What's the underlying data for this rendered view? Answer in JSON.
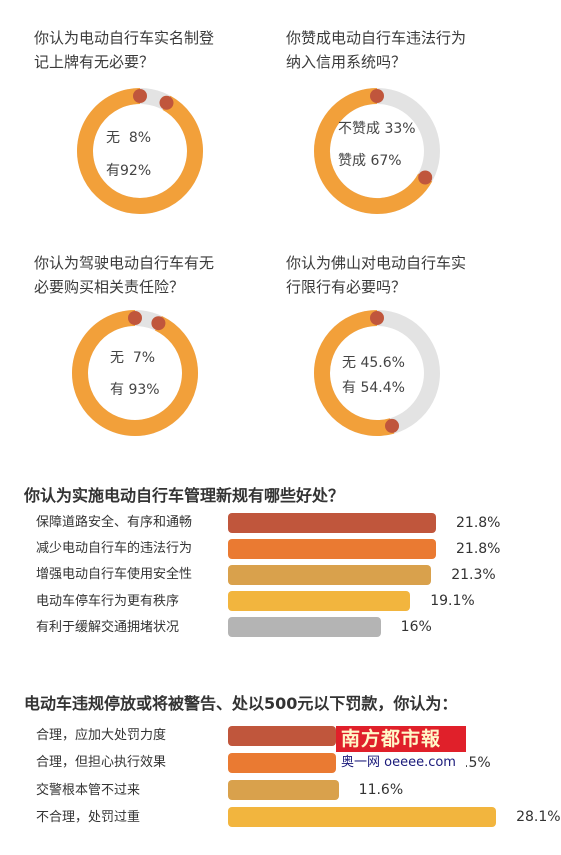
{
  "colors": {
    "orange": "#f2a03a",
    "track": "#e3e3e3",
    "dot": "#c0563c",
    "bar_colors": [
      "#c0563c",
      "#ea7a32",
      "#d9a14c",
      "#f2b53e",
      "#b4b4b4",
      "#c0563c",
      "#ea7a32",
      "#d9a14c",
      "#f2b53e"
    ]
  },
  "donuts": [
    {
      "question_line1": "你认为电动自行车实名制登",
      "question_line2": "记上牌有无必要？",
      "line1": "无  8%",
      "line2": "有92%"
    },
    {
      "question_line1": "你赞成电动自行车违法行为",
      "question_line2": "纳入信用系统吗？",
      "line1": "不赞成 33%",
      "line2": "赞成 67%"
    },
    {
      "question_line1": "你认为驾驶电动自行车有无",
      "question_line2": "必要购买相关责任险？",
      "line1": "无  7%",
      "line2": "有 93%"
    },
    {
      "question_line1": "你认为佛山对电动自行车实",
      "question_line2": "行限行有必要吗？",
      "line1": "无 45.6%",
      "line2": "有 54.4%"
    }
  ],
  "benefits_title": "你认为实施电动自行车管理新规有哪些好处？",
  "penalty_title": "电动车违规停放或将被警告、处以500元以下罚款，你认为：",
  "watermark": {
    "brand": "南方都市報",
    "sub": "奥一网 oeeee.com"
  },
  "chart_data": [
    {
      "type": "pie",
      "categories": [
        "无",
        "有"
      ],
      "values": [
        8,
        92
      ],
      "title": "你认为电动自行车实名制登记上牌有无必要？"
    },
    {
      "type": "pie",
      "categories": [
        "不赞成",
        "赞成"
      ],
      "values": [
        33,
        67
      ],
      "title": "你赞成电动自行车违法行为纳入信用系统吗？"
    },
    {
      "type": "pie",
      "categories": [
        "无",
        "有"
      ],
      "values": [
        7,
        93
      ],
      "title": "你认为驾驶电动自行车有无必要购买相关责任险？"
    },
    {
      "type": "pie",
      "categories": [
        "无",
        "有"
      ],
      "values": [
        45.6,
        54.4
      ],
      "title": "你认为佛山对电动自行车实行限行有必要吗？"
    },
    {
      "type": "bar",
      "title": "你认为实施电动自行车管理新规有哪些好处？",
      "categories": [
        "保障道路安全、有序和通畅",
        "减少电动自行车的违法行为",
        "增强电动自行车使用安全性",
        "电动车停车行为更有秩序",
        "有利于缓解交通拥堵状况"
      ],
      "values": [
        21.8,
        21.8,
        21.3,
        19.1,
        16
      ],
      "value_labels": [
        "21.8%",
        "21.8%",
        "21.3%",
        "19.1%",
        "16%"
      ]
    },
    {
      "type": "bar",
      "title": "电动车违规停放或将被警告、处以500元以下罚款，你认为：",
      "categories": [
        "合理，应加大处罚力度",
        "合理，但担心执行效果",
        "交警根本管不过来",
        "不合理，处罚过重"
      ],
      "values": [
        null,
        null,
        11.6,
        28.1
      ],
      "value_labels": [
        "",
        ".5%",
        "11.6%",
        "28.1%"
      ]
    }
  ]
}
